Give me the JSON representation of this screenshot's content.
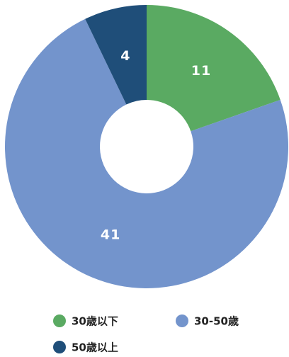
{
  "chart_data": {
    "type": "donut",
    "categories": [
      "30歳以下",
      "30-50歳",
      "50歳以上"
    ],
    "values": [
      11,
      41,
      4
    ],
    "colors": [
      "#5aaa62",
      "#7394cc",
      "#1f4e79"
    ],
    "legend": "bottom"
  }
}
